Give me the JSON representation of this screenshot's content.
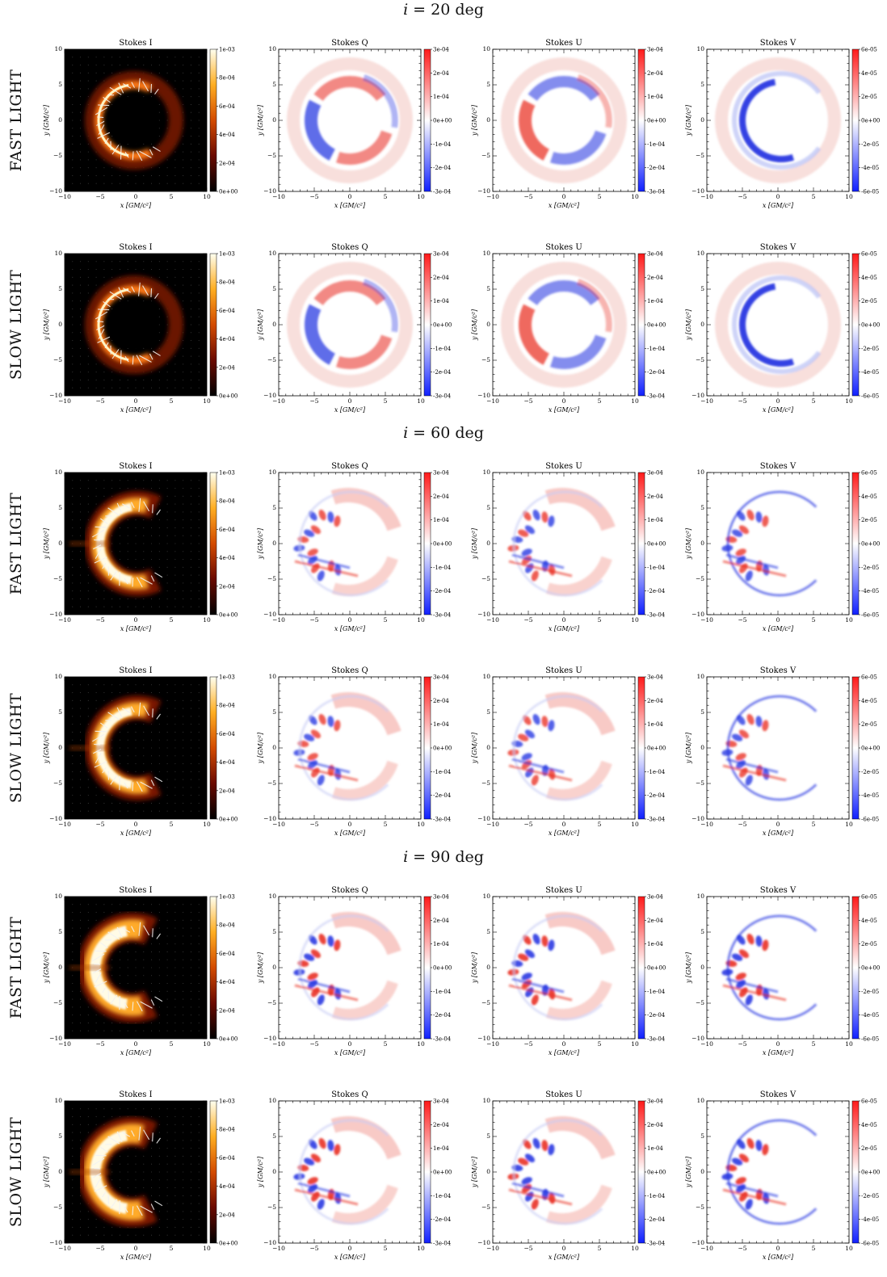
{
  "figure": {
    "sections": [
      {
        "title_var": "i",
        "title_rest": " = 20 deg",
        "rows": [
          {
            "label": "FAST LIGHT",
            "variant": "fast"
          },
          {
            "label": "SLOW LIGHT",
            "variant": "slow"
          }
        ]
      },
      {
        "title_var": "i",
        "title_rest": " = 60 deg",
        "rows": [
          {
            "label": "FAST LIGHT",
            "variant": "fast"
          },
          {
            "label": "SLOW LIGHT",
            "variant": "slow"
          }
        ]
      },
      {
        "title_var": "i",
        "title_rest": " = 90 deg",
        "rows": [
          {
            "label": "FAST LIGHT",
            "variant": "fast"
          },
          {
            "label": "SLOW LIGHT",
            "variant": "slow"
          }
        ]
      }
    ],
    "panel_titles": [
      "Stokes I",
      "Stokes Q",
      "Stokes U",
      "Stokes V"
    ],
    "axes": {
      "xlabel": "x [GM/c²]",
      "ylabel": "y [GM/c²]",
      "ticks": [
        "−10",
        "−5",
        "0",
        "5",
        "10"
      ]
    },
    "colorbars": {
      "I": [
        "1e-03",
        "8e-04",
        "6e-04",
        "4e-04",
        "2e-04",
        "0e+00"
      ],
      "Q": [
        "3e-04",
        "2e-04",
        "1e-04",
        "0e+00",
        "-1e-04",
        "-2e-04",
        "-3e-04"
      ],
      "U": [
        "3e-04",
        "2e-04",
        "1e-04",
        "0e+00",
        "-1e-04",
        "-2e-04",
        "-3e-04"
      ],
      "V": [
        "6e-05",
        "4e-05",
        "2e-05",
        "0e+00",
        "-2e-05",
        "-4e-05",
        "-6e-05"
      ]
    },
    "colors": {
      "red": "#e8261b",
      "blue": "#1c2fe0",
      "hot_bg": "#000000"
    }
  }
}
